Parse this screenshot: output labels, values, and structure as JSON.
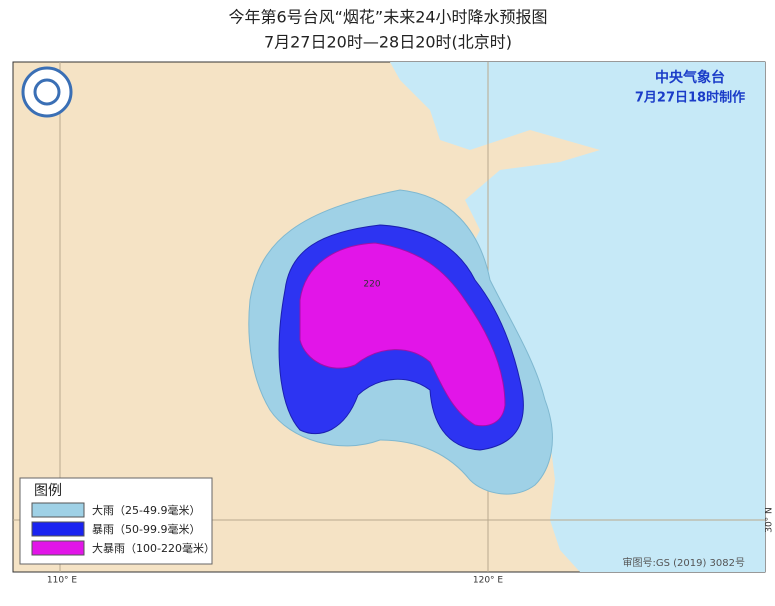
{
  "header": {
    "title": "今年第6号台风“烟花”未来24小时降水预报图",
    "subtitle": "7月27日20时—28日20时(北京时)"
  },
  "agency": {
    "name": "中央气象台",
    "issued": "7月27日18时制作"
  },
  "legend": {
    "title": "图例",
    "items": [
      {
        "label": "大雨（25-49.9毫米）"
      },
      {
        "label": "暴雨（50-99.9毫米）"
      },
      {
        "label": "大暴雨（100-220毫米）"
      }
    ]
  },
  "map": {
    "contour_label": "220",
    "lon_labels": [
      "110° E",
      "120° E"
    ],
    "lat_labels": [
      "30° N"
    ],
    "approval": "审图号:GS (2019) 3082号"
  }
}
